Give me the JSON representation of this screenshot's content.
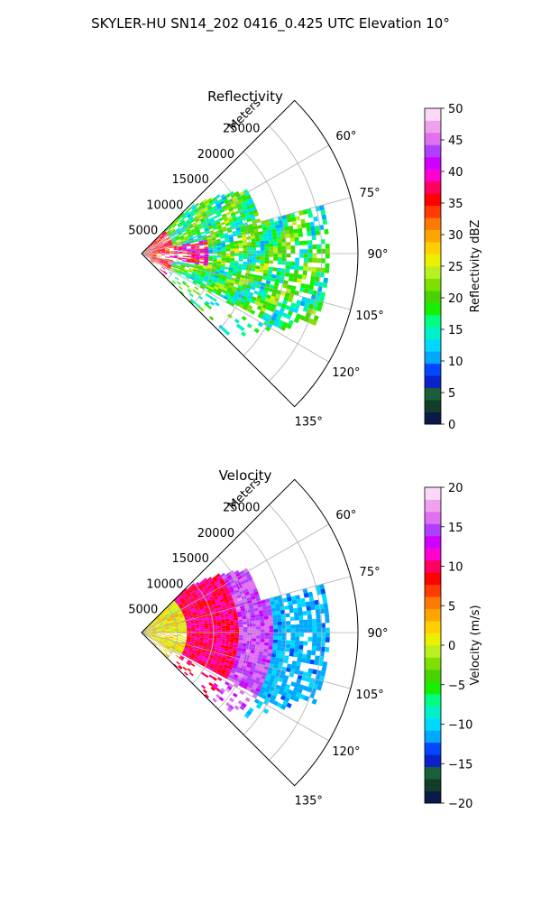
{
  "figure_title": "SKYLER-HU  SN14_202  0416_0.425 UTC Elevation 10°",
  "chart_data": [
    {
      "type": "heatmap",
      "projection": "polar-sector",
      "title": "Reflectivity",
      "radial_axis_label": "Meters",
      "radial_ticks": [
        "5000",
        "10000",
        "15000",
        "20000",
        "25000"
      ],
      "radial_range": [
        0,
        30000
      ],
      "azimuth_range_deg": [
        45,
        135
      ],
      "azimuth_ticks": [
        "60°",
        "75°",
        "90°",
        "105°",
        "120°",
        "135°"
      ],
      "grid": true,
      "colorbar": {
        "label": "Reflectivity dBZ",
        "range": [
          0,
          50
        ],
        "ticks": [
          "0",
          "5",
          "10",
          "15",
          "20",
          "25",
          "30",
          "35",
          "40",
          "45",
          "50"
        ],
        "colors": [
          "#0b1a4a",
          "#123d2a",
          "#1a5e3a",
          "#0a22c8",
          "#0047ff",
          "#00a8ff",
          "#00d8ff",
          "#00f0c8",
          "#00ff80",
          "#16f000",
          "#46d400",
          "#7ee000",
          "#b8f020",
          "#ecf000",
          "#ffd000",
          "#ffa500",
          "#ff7a00",
          "#ff3c00",
          "#ff0000",
          "#ff0060",
          "#ff00d0",
          "#d000ff",
          "#b040ff",
          "#e070f0",
          "#f0a0ec",
          "#fad8f6"
        ]
      },
      "field_summary": "reflectivity mostly 15–25 dBZ, 35–45 dBZ core near origin between 85° and 95°"
    },
    {
      "type": "heatmap",
      "projection": "polar-sector",
      "title": "Velocity",
      "radial_axis_label": "Meters",
      "radial_ticks": [
        "5000",
        "10000",
        "15000",
        "20000",
        "25000"
      ],
      "radial_range": [
        0,
        30000
      ],
      "azimuth_range_deg": [
        45,
        135
      ],
      "azimuth_ticks": [
        "60°",
        "75°",
        "90°",
        "105°",
        "120°",
        "135°"
      ],
      "grid": true,
      "colorbar": {
        "label": "Velocity (m/s)",
        "range": [
          -20,
          20
        ],
        "ticks": [
          "−20",
          "−15",
          "−10",
          "−5",
          "0",
          "5",
          "10",
          "15",
          "20"
        ],
        "colors": [
          "#0b1a4a",
          "#123d2a",
          "#1a5e3a",
          "#0a22c8",
          "#0047ff",
          "#00a8ff",
          "#00d8ff",
          "#00f0c8",
          "#00ff80",
          "#16f000",
          "#46d400",
          "#7ee000",
          "#b8f020",
          "#ecf000",
          "#ffd000",
          "#ffa500",
          "#ff7a00",
          "#ff3c00",
          "#ff0000",
          "#ff0060",
          "#ff00d0",
          "#d000ff",
          "#b040ff",
          "#e070f0",
          "#f0a0ec",
          "#fad8f6"
        ]
      },
      "field_summary": "velocity about 0 to 5 m/s near origin, 8 to 12 m/s at 8–16 km, −10 to −12 m/s beyond 18 km at 80°–120°"
    }
  ]
}
